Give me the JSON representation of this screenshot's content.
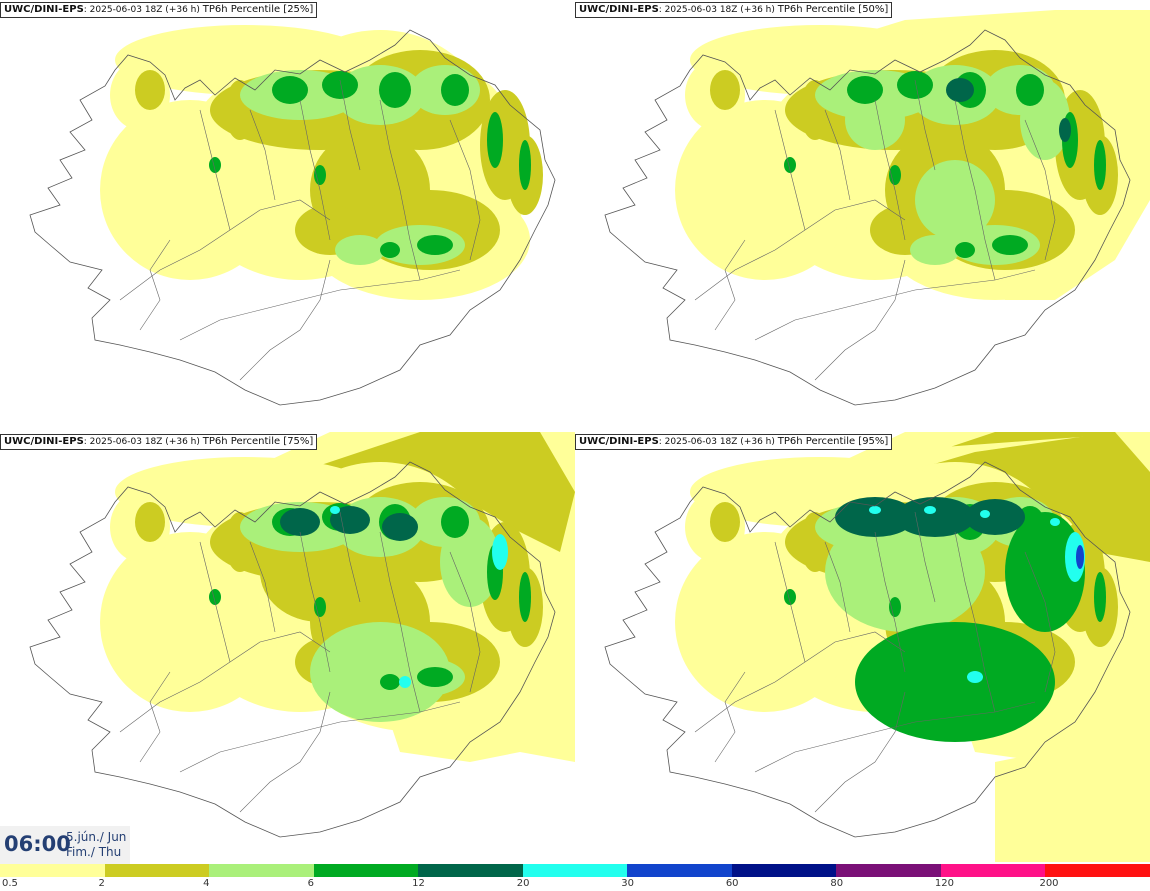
{
  "panels": [
    {
      "model": "UWC/DINI-EPS",
      "run": ": 2025-06-03 18Z (+36 h)",
      "param": "TP6h Percentile [25%]"
    },
    {
      "model": "UWC/DINI-EPS",
      "run": ": 2025-06-03 18Z (+36 h)",
      "param": "TP6h Percentile [50%]"
    },
    {
      "model": "UWC/DINI-EPS",
      "run": ": 2025-06-03 18Z (+36 h)",
      "param": "TP6h Percentile [75%]"
    },
    {
      "model": "UWC/DINI-EPS",
      "run": ": 2025-06-03 18Z (+36 h)",
      "param": "TP6h Percentile [95%]"
    }
  ],
  "valid_time": {
    "time": "06:00",
    "date_line1": "5.jún./ Jun",
    "date_line2": "Fim./ Thu"
  },
  "legend": {
    "bins": [
      {
        "from": "0.5",
        "color": "#ffff99"
      },
      {
        "from": "2",
        "color": "#cccc22"
      },
      {
        "from": "4",
        "color": "#aaf07a"
      },
      {
        "from": "6",
        "color": "#00aa22"
      },
      {
        "from": "12",
        "color": "#00664a"
      },
      {
        "from": "20",
        "color": "#22ffee"
      },
      {
        "from": "30",
        "color": "#1144cc"
      },
      {
        "from": "60",
        "color": "#001188"
      },
      {
        "from": "80",
        "color": "#7a1077"
      },
      {
        "from": "120",
        "color": "#ff1188"
      },
      {
        "from": "200",
        "color": "#ff1111"
      }
    ]
  }
}
